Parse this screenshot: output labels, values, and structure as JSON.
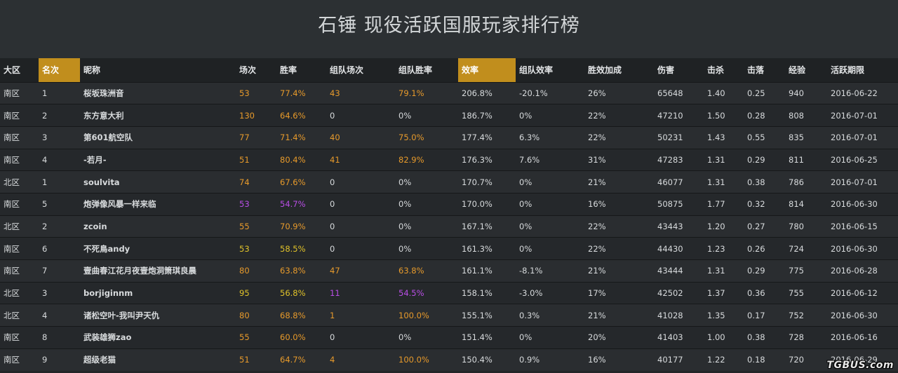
{
  "page": {
    "title": "石锤 现役活跃国服玩家排行榜"
  },
  "table": {
    "headers": [
      "大区",
      "名次",
      "昵称",
      "场次",
      "胜率",
      "组队场次",
      "组队胜率",
      "效率",
      "组队效率",
      "胜效加成",
      "伤害",
      "击杀",
      "击落",
      "经验",
      "活跃期限"
    ],
    "highlighted_headers": [
      1,
      7
    ],
    "rows": [
      {
        "region": "南区",
        "rank": "1",
        "name": "桜坂珠洲音",
        "battles": "53",
        "win_rate": "77.4%",
        "team_battles": "43",
        "team_win_rate": "79.1%",
        "efficiency": "206.8%",
        "team_efficiency": "-20.1%",
        "win_eff_bonus": "26%",
        "damage": "65648",
        "kills": "1.40",
        "shot_down": "0.25",
        "exp": "940",
        "active_until": "2016-06-22",
        "tone": "orange"
      },
      {
        "region": "南区",
        "rank": "2",
        "name": "东方意大利",
        "battles": "130",
        "win_rate": "64.6%",
        "team_battles": "0",
        "team_win_rate": "0%",
        "efficiency": "186.7%",
        "team_efficiency": "0%",
        "win_eff_bonus": "22%",
        "damage": "47210",
        "kills": "1.50",
        "shot_down": "0.28",
        "exp": "808",
        "active_until": "2016-07-01",
        "tone": "orange"
      },
      {
        "region": "南区",
        "rank": "3",
        "name": "第601航空队",
        "battles": "77",
        "win_rate": "71.4%",
        "team_battles": "40",
        "team_win_rate": "75.0%",
        "efficiency": "177.4%",
        "team_efficiency": "6.3%",
        "win_eff_bonus": "22%",
        "damage": "50231",
        "kills": "1.43",
        "shot_down": "0.55",
        "exp": "835",
        "active_until": "2016-07-01",
        "tone": "orange"
      },
      {
        "region": "南区",
        "rank": "4",
        "name": "-若月-",
        "battles": "51",
        "win_rate": "80.4%",
        "team_battles": "41",
        "team_win_rate": "82.9%",
        "efficiency": "176.3%",
        "team_efficiency": "7.6%",
        "win_eff_bonus": "31%",
        "damage": "47283",
        "kills": "1.31",
        "shot_down": "0.29",
        "exp": "811",
        "active_until": "2016-06-25",
        "tone": "orange"
      },
      {
        "region": "北区",
        "rank": "1",
        "name": "soulvita",
        "battles": "74",
        "win_rate": "67.6%",
        "team_battles": "0",
        "team_win_rate": "0%",
        "efficiency": "170.7%",
        "team_efficiency": "0%",
        "win_eff_bonus": "21%",
        "damage": "46077",
        "kills": "1.31",
        "shot_down": "0.38",
        "exp": "786",
        "active_until": "2016-07-01",
        "tone": "orange"
      },
      {
        "region": "南区",
        "rank": "5",
        "name": "炮弹像风暴一样来临",
        "battles": "53",
        "win_rate": "54.7%",
        "team_battles": "0",
        "team_win_rate": "0%",
        "efficiency": "170.0%",
        "team_efficiency": "0%",
        "win_eff_bonus": "16%",
        "damage": "50875",
        "kills": "1.77",
        "shot_down": "0.32",
        "exp": "814",
        "active_until": "2016-06-30",
        "tone": "purple"
      },
      {
        "region": "北区",
        "rank": "2",
        "name": "zcoin",
        "battles": "55",
        "win_rate": "70.9%",
        "team_battles": "0",
        "team_win_rate": "0%",
        "efficiency": "167.1%",
        "team_efficiency": "0%",
        "win_eff_bonus": "22%",
        "damage": "43443",
        "kills": "1.20",
        "shot_down": "0.27",
        "exp": "780",
        "active_until": "2016-06-15",
        "tone": "orange"
      },
      {
        "region": "南区",
        "rank": "6",
        "name": "不死鳥andy",
        "battles": "53",
        "win_rate": "58.5%",
        "team_battles": "0",
        "team_win_rate": "0%",
        "efficiency": "161.3%",
        "team_efficiency": "0%",
        "win_eff_bonus": "22%",
        "damage": "44430",
        "kills": "1.23",
        "shot_down": "0.26",
        "exp": "724",
        "active_until": "2016-06-30",
        "tone": "yellow"
      },
      {
        "region": "南区",
        "rank": "7",
        "name": "壹曲春江花月夜壹炮洞箫琪良晨",
        "battles": "80",
        "win_rate": "63.8%",
        "team_battles": "47",
        "team_win_rate": "63.8%",
        "efficiency": "161.1%",
        "team_efficiency": "-8.1%",
        "win_eff_bonus": "21%",
        "damage": "43444",
        "kills": "1.31",
        "shot_down": "0.29",
        "exp": "775",
        "active_until": "2016-06-28",
        "tone": "orange"
      },
      {
        "region": "北区",
        "rank": "3",
        "name": "borjiginnm",
        "battles": "95",
        "win_rate": "56.8%",
        "team_battles": "11",
        "team_win_rate": "54.5%",
        "efficiency": "158.1%",
        "team_efficiency": "-3.0%",
        "win_eff_bonus": "17%",
        "damage": "42502",
        "kills": "1.37",
        "shot_down": "0.36",
        "exp": "755",
        "active_until": "2016-06-12",
        "tone": "yellow",
        "team_tone": "purple"
      },
      {
        "region": "北区",
        "rank": "4",
        "name": "诸松空叶-我叫尹天仇",
        "battles": "80",
        "win_rate": "68.8%",
        "team_battles": "1",
        "team_win_rate": "100.0%",
        "efficiency": "155.1%",
        "team_efficiency": "0.3%",
        "win_eff_bonus": "21%",
        "damage": "41028",
        "kills": "1.35",
        "shot_down": "0.17",
        "exp": "752",
        "active_until": "2016-06-30",
        "tone": "orange"
      },
      {
        "region": "南区",
        "rank": "8",
        "name": "武装雄狮zao",
        "battles": "55",
        "win_rate": "60.0%",
        "team_battles": "0",
        "team_win_rate": "0%",
        "efficiency": "151.4%",
        "team_efficiency": "0%",
        "win_eff_bonus": "20%",
        "damage": "41403",
        "kills": "1.00",
        "shot_down": "0.38",
        "exp": "728",
        "active_until": "2016-06-16",
        "tone": "orange"
      },
      {
        "region": "南区",
        "rank": "9",
        "name": "超级老猫",
        "battles": "51",
        "win_rate": "64.7%",
        "team_battles": "4",
        "team_win_rate": "100.0%",
        "efficiency": "150.4%",
        "team_efficiency": "0.9%",
        "win_eff_bonus": "16%",
        "damage": "40177",
        "kills": "1.22",
        "shot_down": "0.18",
        "exp": "720",
        "active_until": "2016-06-29",
        "tone": "orange"
      }
    ]
  },
  "colors": {
    "orange": "#e79a2b",
    "yellow": "#e0c22a",
    "purple": "#b94ee6",
    "header_highlight": "#c18e1d"
  },
  "watermark": "TGBUS.com"
}
